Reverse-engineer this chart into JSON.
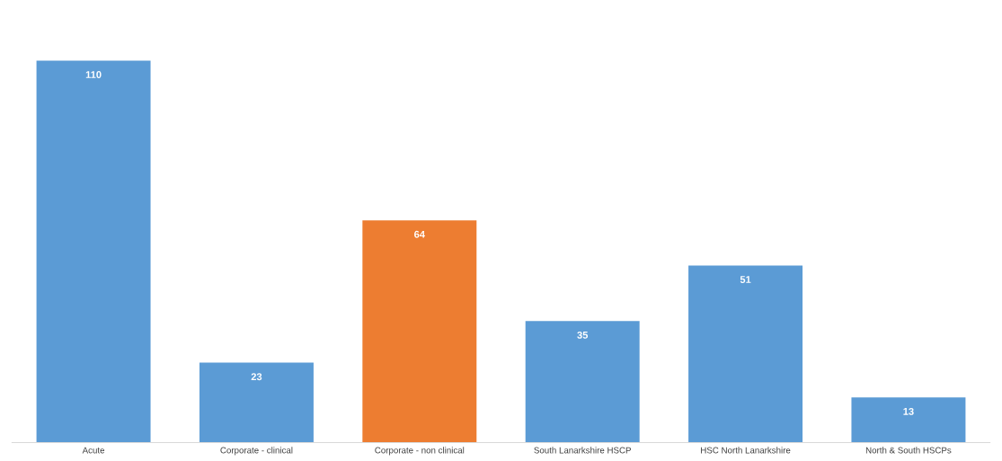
{
  "chart_data": {
    "type": "bar",
    "categories": [
      "Acute",
      "Corporate - clinical",
      "Corporate - non clinical",
      "South Lanarkshire HSCP",
      "HSC North Lanarkshire",
      "North & South HSCPs"
    ],
    "values": [
      110,
      23,
      64,
      35,
      51,
      13
    ],
    "colors": [
      "#5b9bd5",
      "#5b9bd5",
      "#ed7d31",
      "#5b9bd5",
      "#5b9bd5",
      "#5b9bd5"
    ],
    "data_labels": true,
    "grid": false,
    "legend": false
  }
}
